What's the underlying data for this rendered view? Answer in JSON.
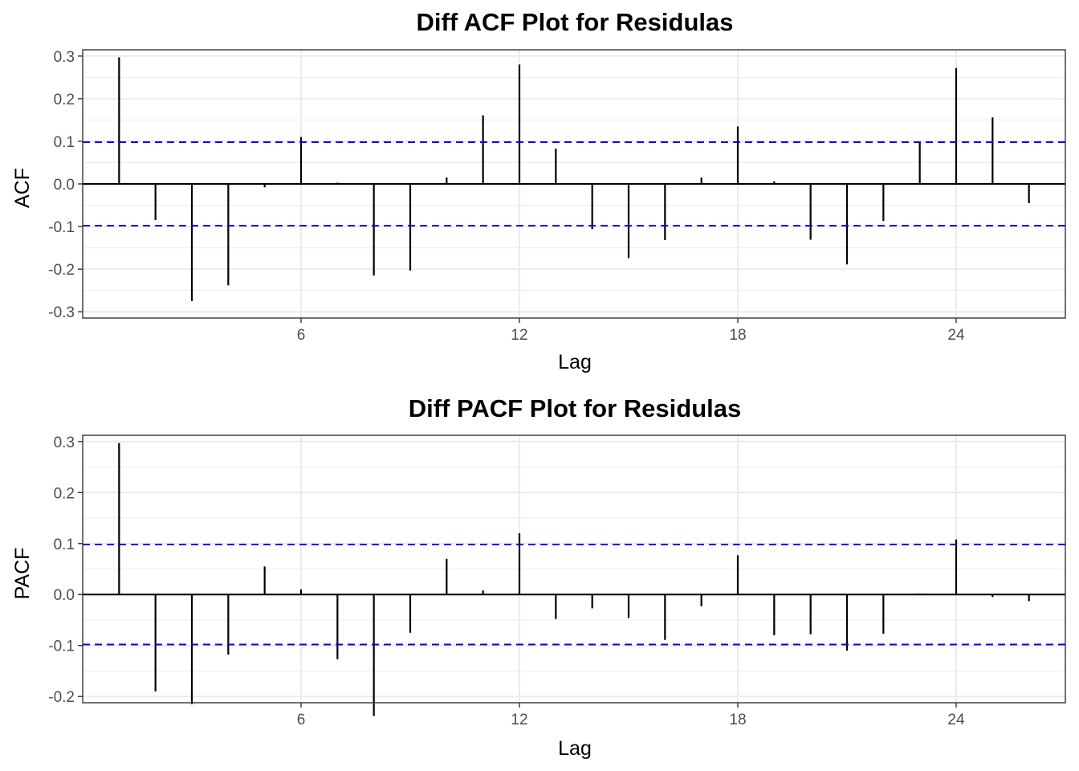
{
  "chart_data": [
    {
      "type": "bar",
      "title": "Diff ACF Plot for Residulas",
      "xlabel": "Lag",
      "ylabel": "ACF",
      "xlim": [
        0,
        27
      ],
      "ylim": [
        -0.3,
        0.3
      ],
      "x_ticks": [
        "6",
        "12",
        "18",
        "24"
      ],
      "y_ticks": [
        "0.3",
        "0.2",
        "0.1",
        "0.0",
        "-0.1",
        "-0.2",
        "-0.3"
      ],
      "x": [
        1,
        2,
        3,
        4,
        5,
        6,
        7,
        8,
        9,
        10,
        11,
        12,
        13,
        14,
        15,
        16,
        17,
        18,
        19,
        20,
        21,
        22,
        23,
        24,
        25,
        26
      ],
      "values": [
        0.297,
        -0.085,
        -0.275,
        -0.238,
        -0.008,
        0.11,
        0.003,
        -0.215,
        -0.203,
        0.015,
        0.161,
        0.28,
        0.083,
        -0.106,
        -0.174,
        -0.132,
        0.015,
        0.135,
        0.006,
        -0.131,
        -0.189,
        -0.087,
        0.098,
        0.272,
        0.156,
        -0.045
      ],
      "confidence_bounds": [
        0.098,
        -0.098
      ],
      "bar_color": "#000000",
      "bound_color": "#0000ff",
      "grid": true
    },
    {
      "type": "bar",
      "title": "Diff PACF Plot for Residulas",
      "xlabel": "Lag",
      "ylabel": "PACF",
      "xlim": [
        0,
        27
      ],
      "ylim": [
        -0.2,
        0.3
      ],
      "x_ticks": [
        "6",
        "12",
        "18",
        "24"
      ],
      "y_ticks": [
        "0.3",
        "0.2",
        "0.1",
        "0.0",
        "-0.1",
        "-0.2"
      ],
      "x": [
        1,
        2,
        3,
        4,
        5,
        6,
        7,
        8,
        9,
        10,
        11,
        12,
        13,
        14,
        15,
        16,
        17,
        18,
        19,
        20,
        21,
        22,
        23,
        24,
        25,
        26
      ],
      "values": [
        0.297,
        -0.19,
        -0.215,
        -0.118,
        0.055,
        0.01,
        -0.127,
        -0.238,
        -0.075,
        0.07,
        0.008,
        0.12,
        -0.048,
        -0.027,
        -0.046,
        -0.089,
        -0.023,
        0.077,
        -0.08,
        -0.078,
        -0.11,
        -0.077,
        0.002,
        0.108,
        -0.005,
        -0.013
      ],
      "confidence_bounds": [
        0.098,
        -0.098
      ],
      "bar_color": "#000000",
      "bound_color": "#0000ff",
      "grid": true
    }
  ]
}
